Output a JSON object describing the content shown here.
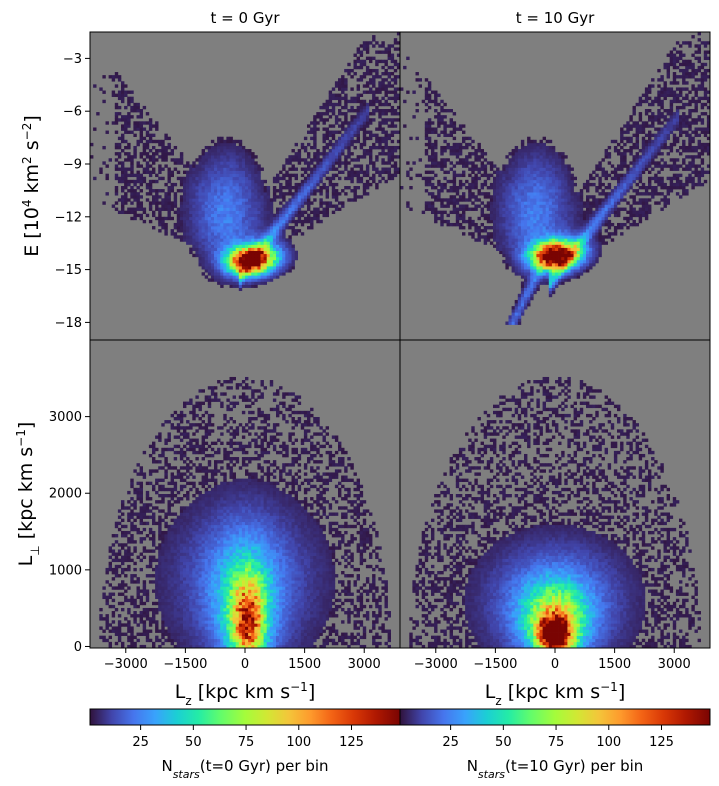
{
  "chart_data": [
    {
      "type": "heatmap",
      "panel": "top-left",
      "title": "t = 0 Gyr",
      "ylabel": "E [10^4 km^2 s^-2]",
      "xlim": [
        -3900,
        3900
      ],
      "ylim": [
        -19,
        -1.5
      ],
      "yticks": [
        -3,
        -6,
        -9,
        -12,
        -15,
        -18
      ],
      "density_model": {
        "background": "#7f7f7f",
        "core": {
          "x": 0,
          "y": -14.2,
          "peak": 140
        },
        "ridge": [
          [
            -1500,
            -11.8
          ],
          [
            0,
            -14.3
          ],
          [
            1500,
            -10.5
          ],
          [
            3000,
            -6
          ]
        ],
        "sparse_region": "V-shaped envelope from (-3500,-6) to (0,-15.3) to (3900,-1.5)"
      }
    },
    {
      "type": "heatmap",
      "panel": "top-right",
      "title": "t = 10 Gyr",
      "xlim": [
        -3900,
        3900
      ],
      "ylim": [
        -19,
        -1.5
      ],
      "density_model": {
        "background": "#7f7f7f",
        "core": {
          "x": -100,
          "y": -14.0,
          "peak": 130
        },
        "tail": [
          [
            0,
            -15
          ],
          [
            -500,
            -18
          ]
        ],
        "sparse_region": "V-shaped envelope from (-3500,-6) to (0,-15) to (3900,-1.5)"
      }
    },
    {
      "type": "heatmap",
      "panel": "bottom-left",
      "xlabel": "Lz [kpc km s^-1]",
      "ylabel": "L⊥ [kpc km s^-1]",
      "xlim": [
        -3900,
        3900
      ],
      "ylim": [
        -20,
        4000
      ],
      "xticks": [
        -3000,
        -1500,
        0,
        1500,
        3000
      ],
      "yticks": [
        0,
        1000,
        2000,
        3000
      ],
      "density_model": {
        "background": "#7f7f7f",
        "core": {
          "x": 0,
          "y": 300,
          "peak": 95
        },
        "sparse_region": "dome centered at Lz=0 reaching L⊥≈3500"
      }
    },
    {
      "type": "heatmap",
      "panel": "bottom-right",
      "xlabel": "Lz [kpc km s^-1]",
      "xlim": [
        -3900,
        3900
      ],
      "ylim": [
        -20,
        4000
      ],
      "xticks": [
        -3000,
        -1500,
        0,
        1500,
        3000
      ],
      "density_model": {
        "background": "#7f7f7f",
        "core": {
          "x": -50,
          "y": 150,
          "peak": 145
        },
        "sparse_region": "dome centered at Lz=0 reaching L⊥≈3300"
      }
    }
  ],
  "colorbars": [
    {
      "colormap": "turbo",
      "range": [
        1,
        148
      ],
      "ticks": [
        25,
        50,
        75,
        100,
        125
      ],
      "label": "Nstars(t=0 Gyr) per bin"
    },
    {
      "colormap": "turbo",
      "range": [
        1,
        148
      ],
      "ticks": [
        25,
        50,
        75,
        100,
        125
      ],
      "label": "Nstars(t=10 Gyr) per bin"
    }
  ],
  "labels": {
    "title_left": "t = 0 Gyr",
    "title_right": "t = 10 Gyr",
    "ylabel_top": "E [10",
    "ylabel_top_sup1": "4",
    "ylabel_top_mid": " km",
    "ylabel_top_sup2": "2",
    "ylabel_top_end": " s",
    "ylabel_top_sup3": "−2",
    "ylabel_top_close": "]",
    "ylabel_bottom": "L",
    "ylabel_bottom_sub": "⊥",
    "ylabel_bottom_mid": " [kpc km s",
    "ylabel_bottom_sup": "−1",
    "ylabel_bottom_close": "]",
    "xlabel_L": "L",
    "xlabel_sub": "z",
    "xlabel_mid": " [kpc km s",
    "xlabel_sup": "−1",
    "xlabel_close": "]",
    "cb_left_N": "N",
    "cb_left_sub": "stars",
    "cb_left_rest": "(t=0 Gyr) per bin",
    "cb_right_N": "N",
    "cb_right_sub": "stars",
    "cb_right_rest": "(t=10 Gyr) per bin"
  }
}
